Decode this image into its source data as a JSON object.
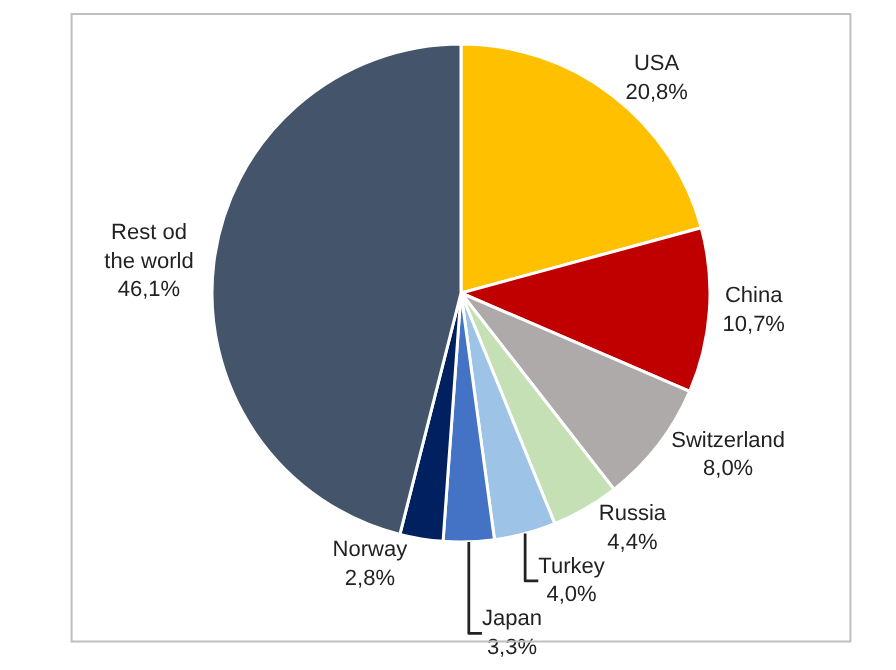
{
  "chart_data": {
    "type": "pie",
    "categories": [
      "USA",
      "China",
      "Switzerland",
      "Russia",
      "Turkey",
      "Japan",
      "Norway",
      "Rest od the world"
    ],
    "values": [
      20.8,
      10.7,
      8.0,
      4.4,
      4.0,
      3.3,
      2.8,
      46.1
    ],
    "value_labels": [
      "20,8%",
      "10,7%",
      "8,0%",
      "4,4%",
      "4,0%",
      "3,3%",
      "2,8%",
      "46,1%"
    ],
    "colors": [
      "#ffc000",
      "#c00000",
      "#aeaaaa",
      "#c5e0b4",
      "#9dc3e6",
      "#4472c4",
      "#002060",
      "#44546a"
    ],
    "legend": false
  }
}
